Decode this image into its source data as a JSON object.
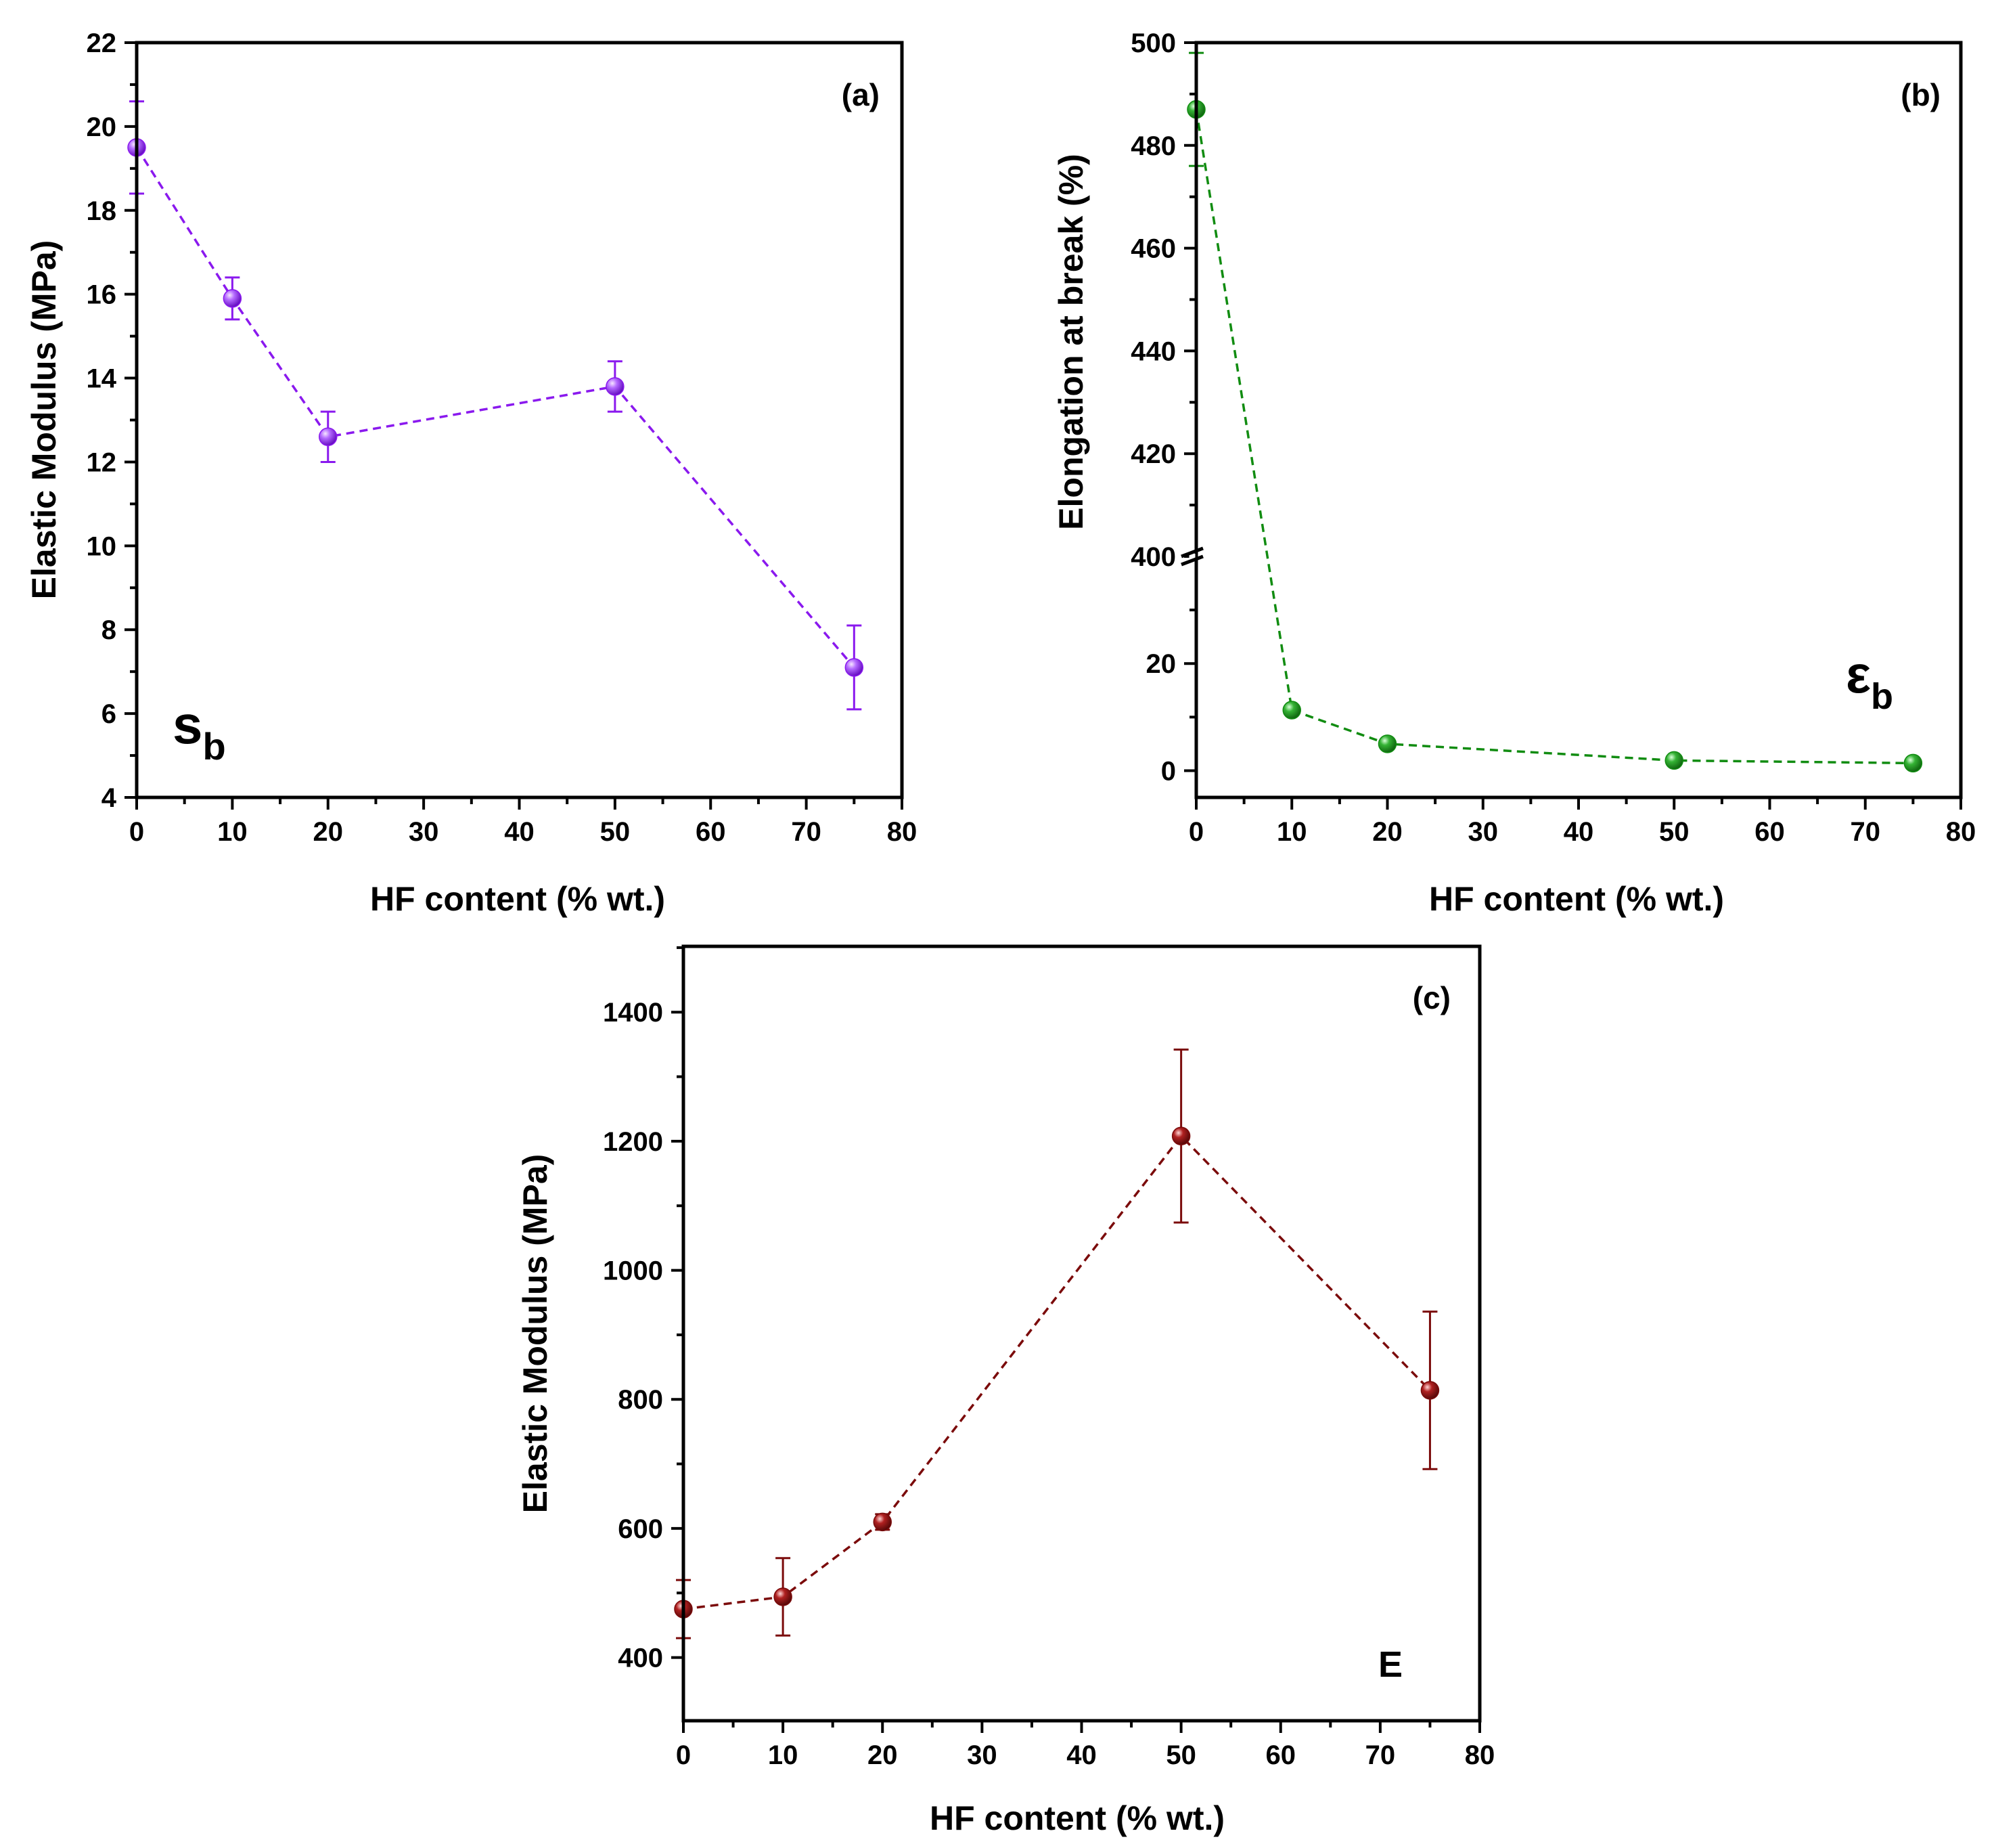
{
  "chart_data": [
    {
      "id": "a",
      "type": "line",
      "panel_label": "(a)",
      "symbol": {
        "main": "s",
        "sub": "b"
      },
      "color": "#8a19ee",
      "title": "",
      "xlabel": "HF content (% wt.)",
      "ylabel": "Elastic Modulus (MPa)",
      "xlim": [
        0,
        80
      ],
      "ylim": [
        4,
        22
      ],
      "xticks": [
        0,
        10,
        20,
        30,
        40,
        50,
        60,
        70,
        80
      ],
      "yticks": [
        4,
        6,
        8,
        10,
        12,
        14,
        16,
        18,
        20,
        22
      ],
      "x": [
        0,
        10,
        20,
        50,
        75
      ],
      "y": [
        19.5,
        15.9,
        12.6,
        13.8,
        7.1
      ],
      "yerr": [
        1.1,
        0.5,
        0.6,
        0.6,
        1.0
      ],
      "line_style": "dashed",
      "marker": "sphere",
      "grid": false,
      "legend": "none"
    },
    {
      "id": "b",
      "type": "line",
      "panel_label": "(b)",
      "symbol": {
        "main": "ε",
        "sub": "b"
      },
      "color": "#118c11",
      "title": "",
      "xlabel": "HF content (% wt.)",
      "ylabel": "Elongation at break (%)",
      "xlim": [
        0,
        80
      ],
      "y_axis_break": true,
      "ylim_lower": [
        -5,
        40
      ],
      "ylim_upper": [
        400,
        500
      ],
      "xticks": [
        0,
        10,
        20,
        30,
        40,
        50,
        60,
        70,
        80
      ],
      "yticks": [
        0,
        20,
        400,
        420,
        440,
        460,
        480,
        500
      ],
      "x": [
        0,
        10,
        20,
        50,
        75
      ],
      "y": [
        487,
        11.3,
        5.0,
        1.9,
        1.4
      ],
      "yerr": [
        11,
        0.6,
        0.4,
        0.3,
        0.3
      ],
      "line_style": "dashed",
      "marker": "sphere",
      "grid": false,
      "legend": "none"
    },
    {
      "id": "c",
      "type": "line",
      "panel_label": "(c)",
      "symbol": {
        "main": "E",
        "sub": ""
      },
      "color": "#7b0b0b",
      "title": "",
      "xlabel": "HF content (% wt.)",
      "ylabel": "Elastic Modulus (MPa)",
      "xlim": [
        0,
        80
      ],
      "ylim": [
        302,
        1502
      ],
      "xticks": [
        0,
        10,
        20,
        30,
        40,
        50,
        60,
        70,
        80
      ],
      "yticks": [
        400,
        600,
        800,
        1000,
        1200,
        1400
      ],
      "x": [
        0,
        10,
        20,
        50,
        75
      ],
      "y": [
        475,
        494,
        610,
        1208,
        814
      ],
      "yerr": [
        45,
        60,
        12,
        134,
        122
      ],
      "line_style": "dashed",
      "marker": "sphere",
      "grid": false,
      "legend": "none"
    }
  ]
}
